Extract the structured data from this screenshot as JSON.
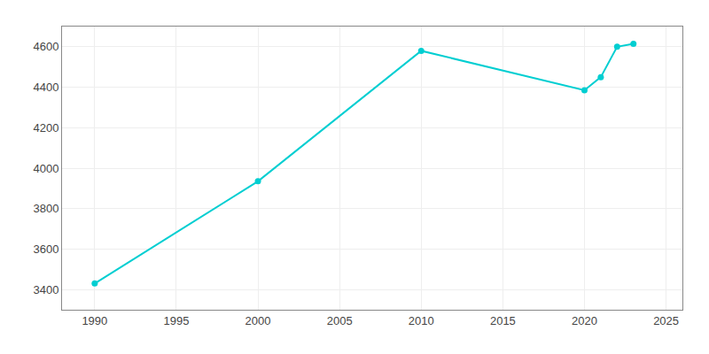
{
  "chart_data": {
    "type": "line",
    "x": [
      1990,
      2000,
      2010,
      2020,
      2021,
      2022,
      2023
    ],
    "values": [
      3430,
      3935,
      4580,
      4385,
      4450,
      4600,
      4615
    ],
    "color": "#00CED1",
    "marker": "circle",
    "xlim": [
      1988,
      2026
    ],
    "ylim": [
      3300,
      4700
    ],
    "xticks": [
      1990,
      1995,
      2000,
      2005,
      2010,
      2015,
      2020,
      2025
    ],
    "yticks": [
      3400,
      3600,
      3800,
      4000,
      4200,
      4400,
      4600
    ],
    "grid": true
  }
}
